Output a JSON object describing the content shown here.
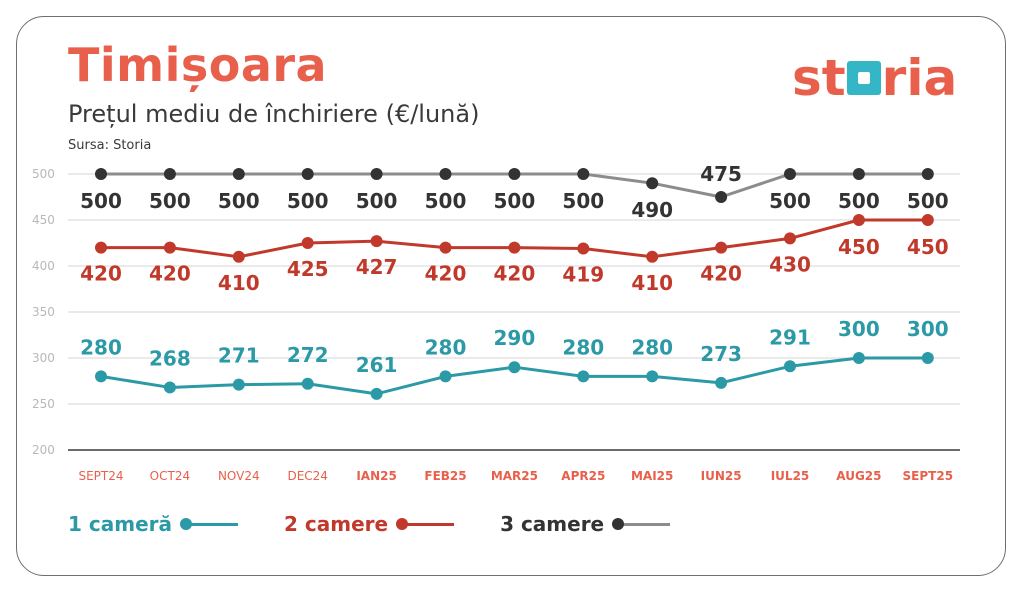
{
  "header": {
    "title": "Timișoara",
    "subtitle": "Prețul mediu de închiriere (€/lună)",
    "source": "Sursa: Storia",
    "logo": {
      "part1": "st",
      "part2": "ria"
    }
  },
  "colors": {
    "accent": "#e8604c",
    "teal": "#2b9aa6",
    "red": "#c0392b",
    "dark": "#333333",
    "gray_line": "#8c8c8c",
    "grid": "#d6d6d6",
    "axis": "#3a3a3a"
  },
  "legend": [
    {
      "label": "1 cameră",
      "color": "#2b9aa6",
      "line": "#2b9aa6"
    },
    {
      "label": "2 camere",
      "color": "#c0392b",
      "line": "#c0392b"
    },
    {
      "label": "3 camere",
      "color": "#333333",
      "line": "#8c8c8c"
    }
  ],
  "chart_data": {
    "type": "line",
    "categories": [
      "SEPT24",
      "OCT24",
      "NOV24",
      "DEC24",
      "IAN25",
      "FEB25",
      "MAR25",
      "APR25",
      "MAI25",
      "IUN25",
      "IUL25",
      "AUG25",
      "SEPT25"
    ],
    "yticks": [
      200,
      250,
      300,
      350,
      400,
      450,
      500
    ],
    "ylim": [
      200,
      500
    ],
    "grid": true,
    "legend_position": "bottom",
    "series": [
      {
        "name": "1 cameră",
        "values": [
          280,
          268,
          271,
          272,
          261,
          280,
          290,
          280,
          280,
          273,
          291,
          300,
          300
        ]
      },
      {
        "name": "2 camere",
        "values": [
          420,
          420,
          410,
          425,
          427,
          420,
          420,
          419,
          410,
          420,
          430,
          450,
          450
        ]
      },
      {
        "name": "3 camere",
        "values": [
          500,
          500,
          500,
          500,
          500,
          500,
          500,
          500,
          490,
          475,
          500,
          500,
          500
        ]
      }
    ]
  }
}
